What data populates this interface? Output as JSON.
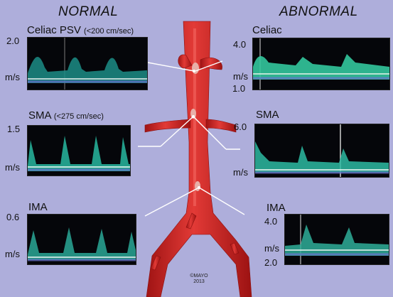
{
  "headings": {
    "normal": "NORMAL",
    "abnormal": "ABNORMAL"
  },
  "panels": {
    "normal_celiac": {
      "title": "Celiac PSV",
      "note": "(<200 cm/sec)",
      "scale_top": "2.0",
      "units": "m/s"
    },
    "normal_sma": {
      "title": "SMA",
      "note": "(<275 cm/sec)",
      "scale_top": "1.5",
      "units": "m/s"
    },
    "normal_ima": {
      "title": "IMA",
      "scale_top": "0.6",
      "units": "m/s"
    },
    "abnormal_celiac": {
      "title": "Celiac",
      "scale_top": "4.0",
      "units": "m/s",
      "scale_bottom": "1.0"
    },
    "abnormal_sma": {
      "title": "SMA",
      "scale_top": "6.0",
      "units": "m/s"
    },
    "abnormal_ima": {
      "title": "IMA",
      "scale_top": "4.0",
      "units": "m/s",
      "scale_bottom": "2.0"
    }
  },
  "copyright": {
    "line1": "©MAYO",
    "line2": "2013"
  },
  "colors": {
    "aorta": "#d42a2a",
    "background": "#aeaedb",
    "doppler": "#2fd3b0"
  }
}
